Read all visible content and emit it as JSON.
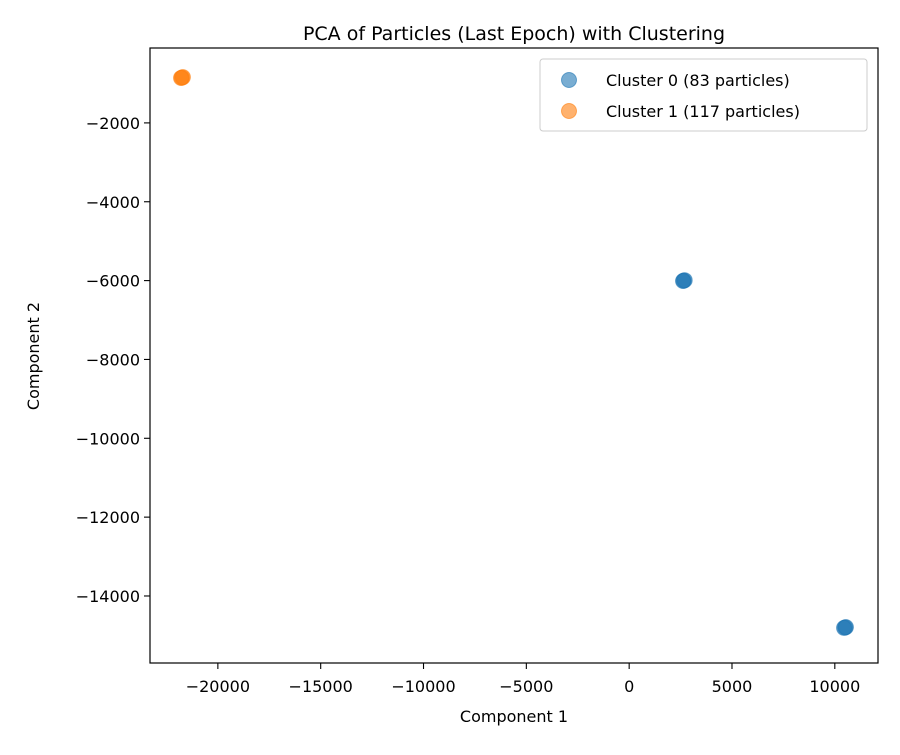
{
  "chart_data": {
    "type": "scatter",
    "title": "PCA of Particles (Last Epoch) with Clustering",
    "xlabel": "Component 1",
    "ylabel": "Component 2",
    "xlim": [
      -23300,
      12100
    ],
    "ylim": [
      -15700,
      -100
    ],
    "xticks": [
      -20000,
      -15000,
      -10000,
      -5000,
      0,
      5000,
      10000
    ],
    "xtick_labels": [
      "−20000",
      "−15000",
      "−10000",
      "−5000",
      "0",
      "5000",
      "10000"
    ],
    "yticks": [
      -2000,
      -4000,
      -6000,
      -8000,
      -10000,
      -12000,
      -14000
    ],
    "ytick_labels": [
      "−2000",
      "−4000",
      "−6000",
      "−8000",
      "−10000",
      "−12000",
      "−14000"
    ],
    "grid": false,
    "legend_position": "top-right",
    "series": [
      {
        "name": "Cluster 0 (83 particles)",
        "color": "#1f77b4",
        "points": [
          {
            "x": 2650,
            "y": -6000
          },
          {
            "x": 2700,
            "y": -5990
          },
          {
            "x": 2620,
            "y": -6010
          },
          {
            "x": 10500,
            "y": -14800
          },
          {
            "x": 10450,
            "y": -14810
          },
          {
            "x": 10540,
            "y": -14790
          }
        ]
      },
      {
        "name": "Cluster 1 (117 particles)",
        "color": "#ff7f0e",
        "points": [
          {
            "x": -21750,
            "y": -850
          },
          {
            "x": -21700,
            "y": -840
          },
          {
            "x": -21790,
            "y": -860
          }
        ]
      }
    ]
  }
}
